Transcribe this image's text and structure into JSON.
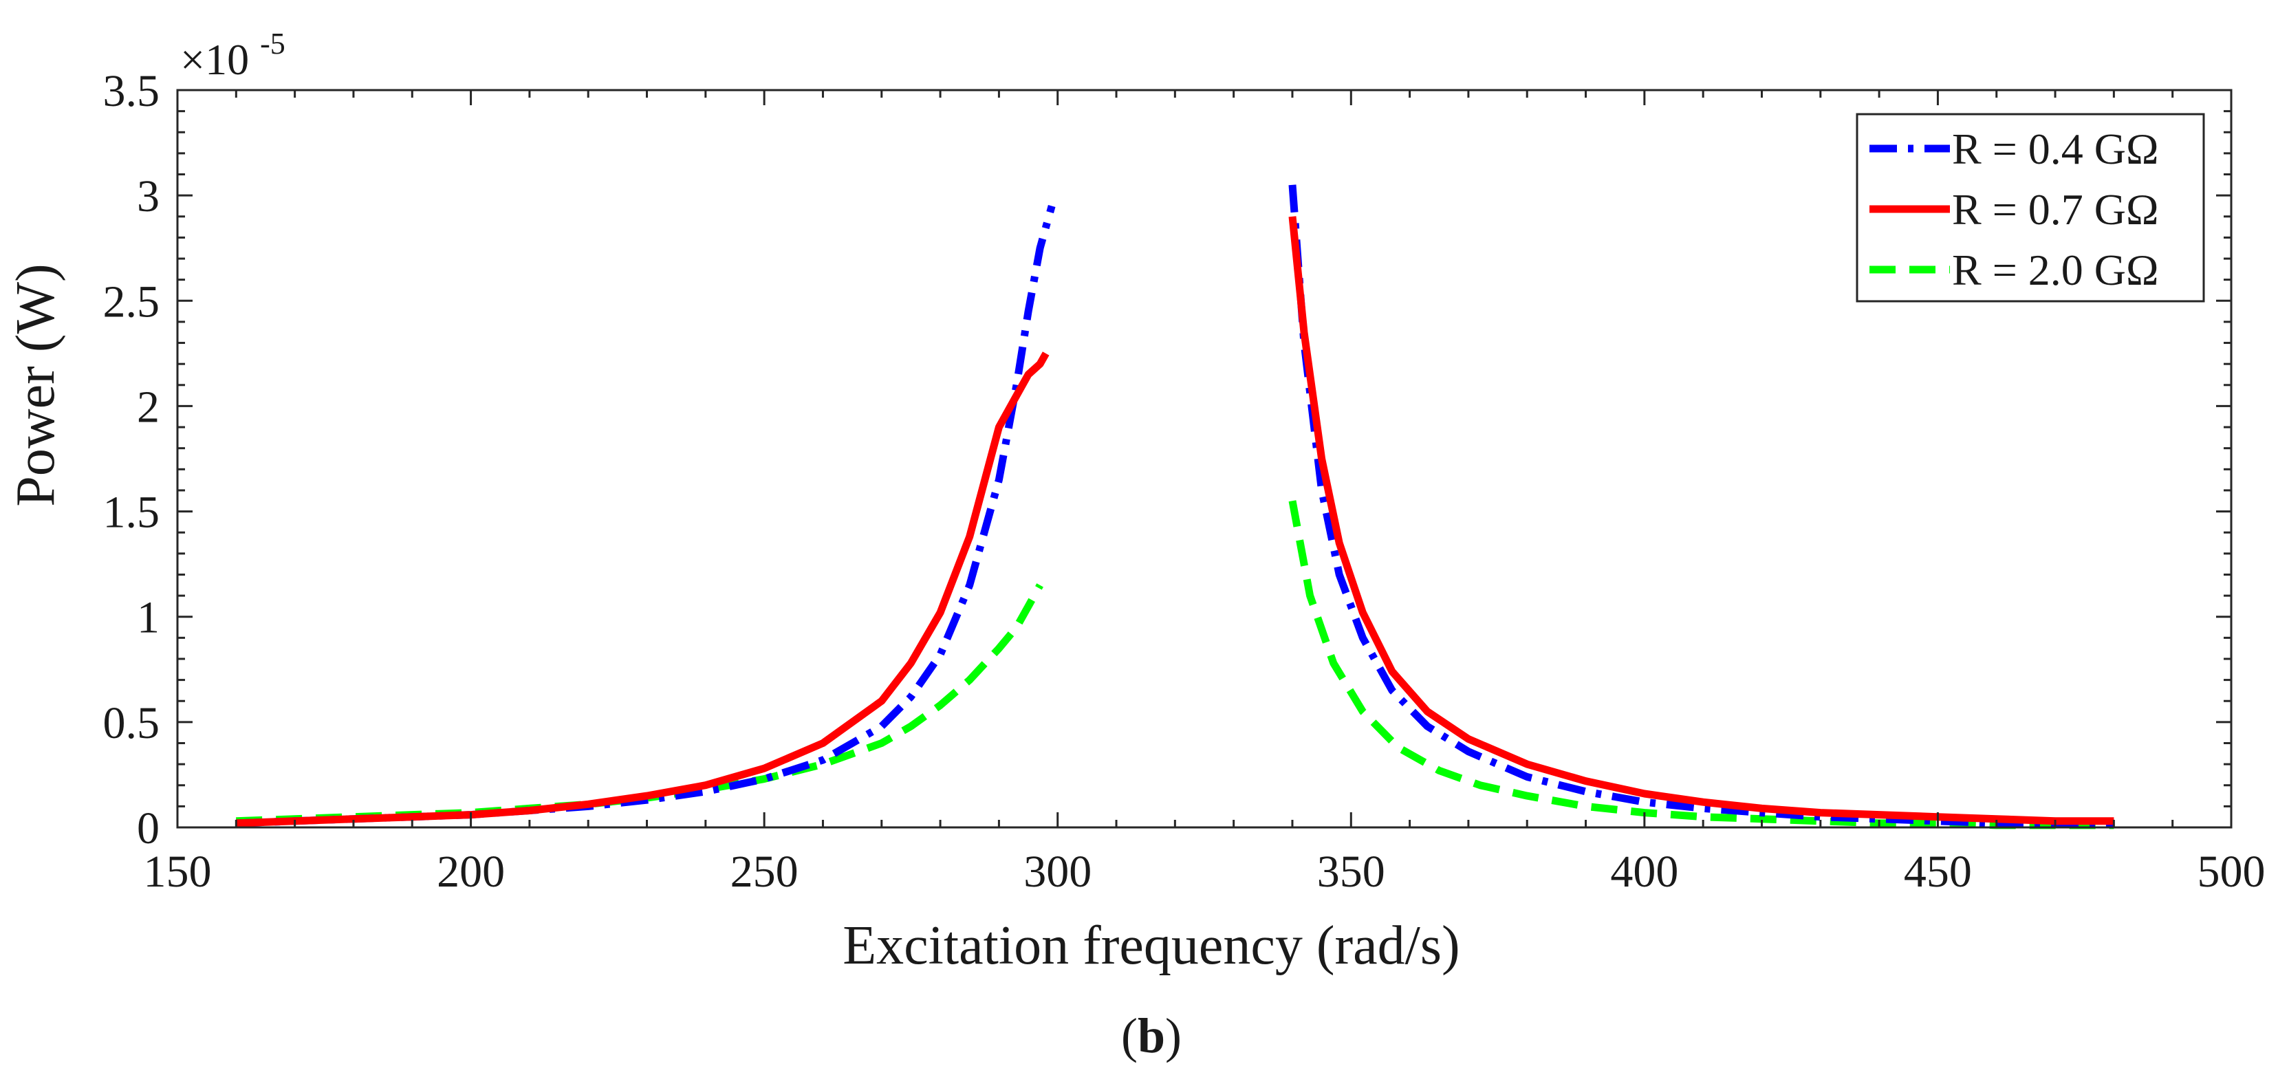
{
  "chart_data": {
    "type": "line",
    "title": "",
    "xlabel": "Excitation frequency (rad/s)",
    "ylabel": "Power (W)",
    "xlim": [
      150,
      500
    ],
    "ylim": [
      0,
      3.5
    ],
    "y_scale_label": "×10",
    "y_scale_exponent": "-5",
    "xticks": [
      150,
      200,
      250,
      300,
      350,
      400,
      450,
      500
    ],
    "xtick_labels": [
      "150",
      "200",
      "250",
      "300",
      "350",
      "400",
      "450",
      "500"
    ],
    "yticks": [
      0,
      0.5,
      1,
      1.5,
      2,
      2.5,
      3,
      3.5
    ],
    "ytick_labels": [
      "0",
      "0.5",
      "1",
      "1.5",
      "2",
      "2.5",
      "3",
      "3.5"
    ],
    "grid": false,
    "legend_position": "top-right",
    "caption_open": "(",
    "caption_letter": "b",
    "caption_close": ")",
    "series": [
      {
        "name": "R = 0.4 GΩ",
        "color": "#0000ff",
        "style": "dash-dot",
        "segments": [
          {
            "x": [
              160,
              170,
              180,
              190,
              200,
              210,
              220,
              230,
              240,
              250,
              260,
              270,
              275,
              280,
              285,
              290,
              293,
              295,
              297,
              299
            ],
            "y": [
              0.02,
              0.03,
              0.04,
              0.05,
              0.06,
              0.08,
              0.1,
              0.13,
              0.17,
              0.23,
              0.32,
              0.48,
              0.62,
              0.82,
              1.15,
              1.65,
              2.1,
              2.45,
              2.75,
              2.95
            ]
          },
          {
            "x": [
              340,
              342,
              345,
              348,
              352,
              357,
              363,
              370,
              380,
              390,
              400,
              410,
              420,
              430,
              440,
              450,
              460,
              470,
              480
            ],
            "y": [
              3.05,
              2.3,
              1.6,
              1.2,
              0.9,
              0.65,
              0.48,
              0.36,
              0.24,
              0.17,
              0.12,
              0.09,
              0.07,
              0.05,
              0.04,
              0.03,
              0.02,
              0.02,
              0.02
            ]
          }
        ]
      },
      {
        "name": "R = 0.7 GΩ",
        "color": "#ff0000",
        "style": "solid",
        "segments": [
          {
            "x": [
              160,
              170,
              180,
              190,
              200,
              210,
              220,
              230,
              240,
              250,
              260,
              270,
              275,
              280,
              285,
              290,
              293,
              295,
              297,
              298
            ],
            "y": [
              0.02,
              0.03,
              0.04,
              0.05,
              0.06,
              0.08,
              0.11,
              0.15,
              0.2,
              0.28,
              0.4,
              0.6,
              0.78,
              1.02,
              1.38,
              1.9,
              2.05,
              2.15,
              2.2,
              2.25
            ]
          },
          {
            "x": [
              340,
              342,
              345,
              348,
              352,
              357,
              363,
              370,
              380,
              390,
              400,
              410,
              420,
              430,
              440,
              450,
              460,
              470,
              480
            ],
            "y": [
              2.9,
              2.35,
              1.75,
              1.35,
              1.02,
              0.74,
              0.55,
              0.42,
              0.3,
              0.22,
              0.16,
              0.12,
              0.09,
              0.07,
              0.06,
              0.05,
              0.04,
              0.03,
              0.03
            ]
          }
        ]
      },
      {
        "name": "R = 2.0 GΩ",
        "color": "#00ff00",
        "style": "dashed",
        "segments": [
          {
            "x": [
              160,
              170,
              180,
              190,
              200,
              210,
              220,
              230,
              240,
              250,
              260,
              270,
              275,
              280,
              285,
              290,
              293,
              295,
              297
            ],
            "y": [
              0.03,
              0.04,
              0.05,
              0.06,
              0.07,
              0.09,
              0.11,
              0.14,
              0.18,
              0.23,
              0.3,
              0.4,
              0.48,
              0.58,
              0.7,
              0.85,
              0.95,
              1.05,
              1.15
            ]
          },
          {
            "x": [
              340,
              343,
              347,
              352,
              358,
              365,
              372,
              380,
              390,
              400,
              410,
              420,
              430,
              440,
              450,
              460,
              470,
              480
            ],
            "y": [
              1.55,
              1.1,
              0.78,
              0.55,
              0.38,
              0.27,
              0.2,
              0.15,
              0.1,
              0.07,
              0.05,
              0.04,
              0.03,
              0.02,
              0.02,
              0.01,
              0.01,
              0.01
            ]
          }
        ]
      }
    ]
  }
}
